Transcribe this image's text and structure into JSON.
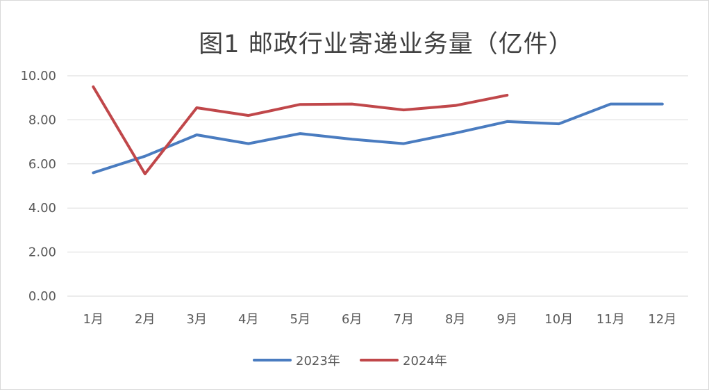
{
  "chart_data": {
    "type": "line",
    "title": "图1 邮政行业寄递业务量（亿件）",
    "categories": [
      "1月",
      "2月",
      "3月",
      "4月",
      "5月",
      "6月",
      "7月",
      "8月",
      "9月",
      "10月",
      "11月",
      "12月"
    ],
    "yticks": [
      "0.00",
      "2.00",
      "4.00",
      "6.00",
      "8.00",
      "10.00"
    ],
    "ylim": [
      0,
      10
    ],
    "grid": true,
    "legend_position": "bottom",
    "series": [
      {
        "name": "2023年",
        "color": "#4a7cc0",
        "values": [
          5.6,
          6.35,
          7.32,
          6.92,
          7.38,
          7.12,
          6.92,
          7.4,
          7.92,
          7.82,
          8.72,
          8.72
        ]
      },
      {
        "name": "2024年",
        "color": "#c0474a",
        "values": [
          9.5,
          5.55,
          8.55,
          8.2,
          8.7,
          8.72,
          8.45,
          8.65,
          9.12,
          null,
          null,
          null
        ]
      }
    ]
  }
}
